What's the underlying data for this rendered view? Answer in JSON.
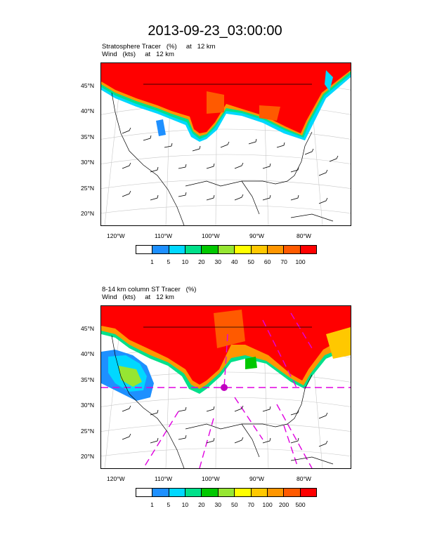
{
  "title": "2013-09-23_03:00:00",
  "panels": [
    {
      "subtitle_1": "Stratosphere Tracer   (%)     at   12 km",
      "subtitle_2": "Wind   (kts)     at   12 km",
      "lat_labels": [
        "45°N",
        "40°N",
        "35°N",
        "30°N",
        "25°N",
        "20°N"
      ],
      "lon_labels": [
        "120°W",
        "110°W",
        "100°W",
        "90°W",
        "80°W"
      ],
      "colorbar_labels": [
        "1",
        "5",
        "10",
        "20",
        "30",
        "40",
        "50",
        "60",
        "70",
        "100"
      ],
      "colorbar_colors": [
        "#ffffff",
        "#1e90ff",
        "#00d8ff",
        "#00e08a",
        "#00c800",
        "#96e632",
        "#ffff00",
        "#ffc800",
        "#ff9600",
        "#ff5a00",
        "#ff0000"
      ]
    },
    {
      "subtitle_1": "8-14 km column ST Tracer   (%)",
      "subtitle_2": "Wind   (kts)     at   12 km",
      "lat_labels": [
        "45°N",
        "40°N",
        "35°N",
        "30°N",
        "25°N",
        "20°N"
      ],
      "lon_labels": [
        "120°W",
        "110°W",
        "100°W",
        "90°W",
        "80°W"
      ],
      "colorbar_labels": [
        "1",
        "5",
        "10",
        "20",
        "30",
        "50",
        "70",
        "100",
        "200",
        "500"
      ],
      "colorbar_colors": [
        "#ffffff",
        "#1e90ff",
        "#00d8ff",
        "#00e08a",
        "#00c800",
        "#96e632",
        "#ffff00",
        "#ffc800",
        "#ff9600",
        "#ff5a00",
        "#ff0000"
      ]
    }
  ]
}
